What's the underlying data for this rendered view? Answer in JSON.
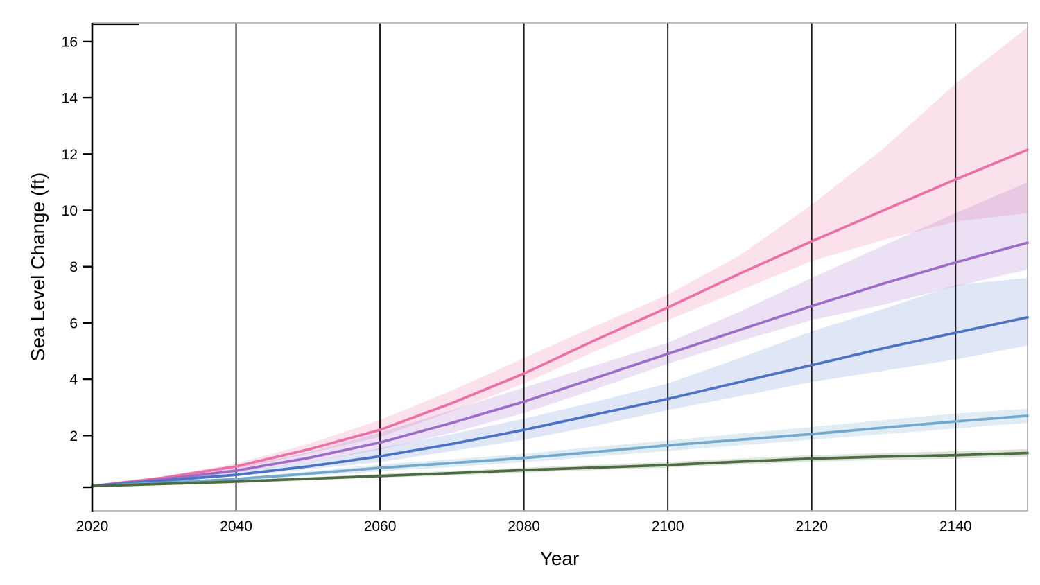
{
  "figure": {
    "background": "#ffffff",
    "xlabel": "Year",
    "ylabel": "Sea Level Change (ft)"
  },
  "axes": {
    "x": {
      "min": 2020,
      "max": 2150,
      "tick_labels": [
        "2020",
        "2040",
        "2060",
        "2080",
        "2100",
        "2120",
        "2140"
      ],
      "tick_years": [
        2020,
        2040,
        2060,
        2080,
        2100,
        2120,
        2140
      ],
      "grid_years": [
        2040,
        2060,
        2080,
        2100,
        2120,
        2140
      ]
    },
    "y": {
      "min": -0.68,
      "max": 16.66,
      "tick_labels": [
        "2",
        "4",
        "6",
        "8",
        "10",
        "12",
        "14",
        "16"
      ],
      "tick_values": [
        2,
        4,
        6,
        8,
        10,
        12,
        14,
        16
      ],
      "unlabeled_tick_value": 0.16
    },
    "grid_color": "#1a1a1a",
    "axis_color": "#000000",
    "border_color": "#a8a8a8",
    "tick_label_color": "#000000"
  },
  "chart_data": {
    "type": "line",
    "title": "",
    "xlabel": "Year",
    "ylabel": "Sea Level Change (ft)",
    "xlim": [
      2020,
      2150
    ],
    "ylim": [
      -0.68,
      16.66
    ],
    "legend": "none",
    "grid": "vertical-black-gridlines",
    "x": [
      2020,
      2030,
      2040,
      2050,
      2060,
      2070,
      2080,
      2090,
      2100,
      2110,
      2120,
      2130,
      2140,
      2150
    ],
    "series": [
      {
        "id": "highest-scenario",
        "color_name": "pink",
        "line_color": "#ed6fa7",
        "band_fill": "rgba(237,111,167,0.21)",
        "values": [
          0.2,
          0.5,
          0.9,
          1.5,
          2.2,
          3.15,
          4.2,
          5.4,
          6.55,
          7.75,
          8.9,
          10.0,
          11.1,
          12.15
        ],
        "lower": [
          0.2,
          0.45,
          0.8,
          1.35,
          1.95,
          2.85,
          3.85,
          5.0,
          6.1,
          7.15,
          8.2,
          8.95,
          9.6,
          9.9
        ],
        "upper": [
          0.2,
          0.55,
          1.0,
          1.7,
          2.55,
          3.6,
          4.75,
          5.9,
          7.0,
          8.4,
          10.2,
          12.2,
          14.5,
          16.5
        ]
      },
      {
        "id": "second-scenario",
        "color_name": "purple",
        "line_color": "#9e6bc7",
        "band_fill": "rgba(158,107,199,0.20)",
        "values": [
          0.2,
          0.45,
          0.75,
          1.2,
          1.75,
          2.45,
          3.2,
          4.05,
          4.9,
          5.75,
          6.6,
          7.4,
          8.15,
          8.85
        ],
        "lower": [
          0.2,
          0.4,
          0.68,
          1.05,
          1.5,
          2.1,
          2.8,
          3.65,
          4.55,
          5.35,
          6.1,
          6.65,
          7.3,
          7.9
        ],
        "upper": [
          0.2,
          0.5,
          0.85,
          1.4,
          2.1,
          2.9,
          3.7,
          4.5,
          5.3,
          6.4,
          7.6,
          8.75,
          9.9,
          11.0
        ]
      },
      {
        "id": "middle-scenario",
        "color_name": "blue",
        "line_color": "#4b72c5",
        "band_fill": "rgba(75,114,197,0.18)",
        "values": [
          0.2,
          0.4,
          0.6,
          0.9,
          1.26,
          1.7,
          2.2,
          2.75,
          3.3,
          3.9,
          4.5,
          5.1,
          5.65,
          6.2
        ],
        "lower": [
          0.2,
          0.35,
          0.55,
          0.8,
          1.05,
          1.45,
          1.85,
          2.35,
          2.9,
          3.4,
          3.9,
          4.3,
          4.7,
          5.2
        ],
        "upper": [
          0.2,
          0.45,
          0.7,
          1.05,
          1.55,
          2.05,
          2.6,
          3.2,
          3.85,
          4.75,
          5.7,
          6.5,
          7.35,
          7.6
        ]
      },
      {
        "id": "fourth-scenario",
        "color_name": "light-blue",
        "line_color": "#73a8cd",
        "band_fill": "rgba(115,168,205,0.22)",
        "values": [
          0.2,
          0.32,
          0.45,
          0.64,
          0.85,
          1.02,
          1.2,
          1.42,
          1.65,
          1.85,
          2.05,
          2.28,
          2.5,
          2.7
        ],
        "lower": [
          0.2,
          0.28,
          0.4,
          0.56,
          0.73,
          0.88,
          1.05,
          1.25,
          1.45,
          1.65,
          1.85,
          2.05,
          2.25,
          2.45
        ],
        "upper": [
          0.2,
          0.36,
          0.5,
          0.72,
          0.97,
          1.15,
          1.35,
          1.6,
          1.82,
          2.07,
          2.3,
          2.55,
          2.78,
          2.95
        ]
      },
      {
        "id": "lowest-scenario",
        "color_name": "green",
        "line_color": "#4c6b42",
        "band_fill": "rgba(76,107,66,0.18)",
        "values": [
          0.2,
          0.28,
          0.36,
          0.46,
          0.56,
          0.66,
          0.77,
          0.86,
          0.95,
          1.07,
          1.18,
          1.25,
          1.3,
          1.38
        ],
        "lower": [
          0.2,
          0.24,
          0.3,
          0.4,
          0.5,
          0.58,
          0.68,
          0.77,
          0.86,
          0.97,
          1.07,
          1.13,
          1.18,
          1.25
        ],
        "upper": [
          0.2,
          0.32,
          0.42,
          0.52,
          0.63,
          0.74,
          0.86,
          0.96,
          1.06,
          1.18,
          1.3,
          1.38,
          1.44,
          1.52
        ]
      }
    ]
  }
}
